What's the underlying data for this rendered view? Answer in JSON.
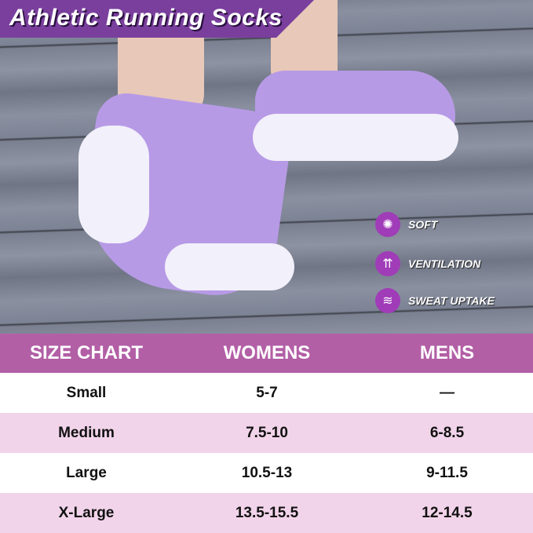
{
  "title": "Athletic Running Socks",
  "features": [
    {
      "icon": "swirl-icon",
      "label": "SOFT"
    },
    {
      "icon": "arrows-up-icon",
      "label": "VENTILATION"
    },
    {
      "icon": "layers-icon",
      "label": "SWEAT UPTAKE"
    }
  ],
  "size_chart": {
    "headers": [
      "SIZE CHART",
      "WOMENS",
      "MENS"
    ],
    "rows": [
      [
        "Small",
        "5-7",
        "—"
      ],
      [
        "Medium",
        "7.5-10",
        "6-8.5"
      ],
      [
        "Large",
        "10.5-13",
        "9-11.5"
      ],
      [
        "X-Large",
        "13.5-15.5",
        "12-14.5"
      ]
    ]
  },
  "colors": {
    "accent": "#7a3f9d",
    "header": "#b25fa6",
    "row_alt": "#f2d4ea"
  }
}
